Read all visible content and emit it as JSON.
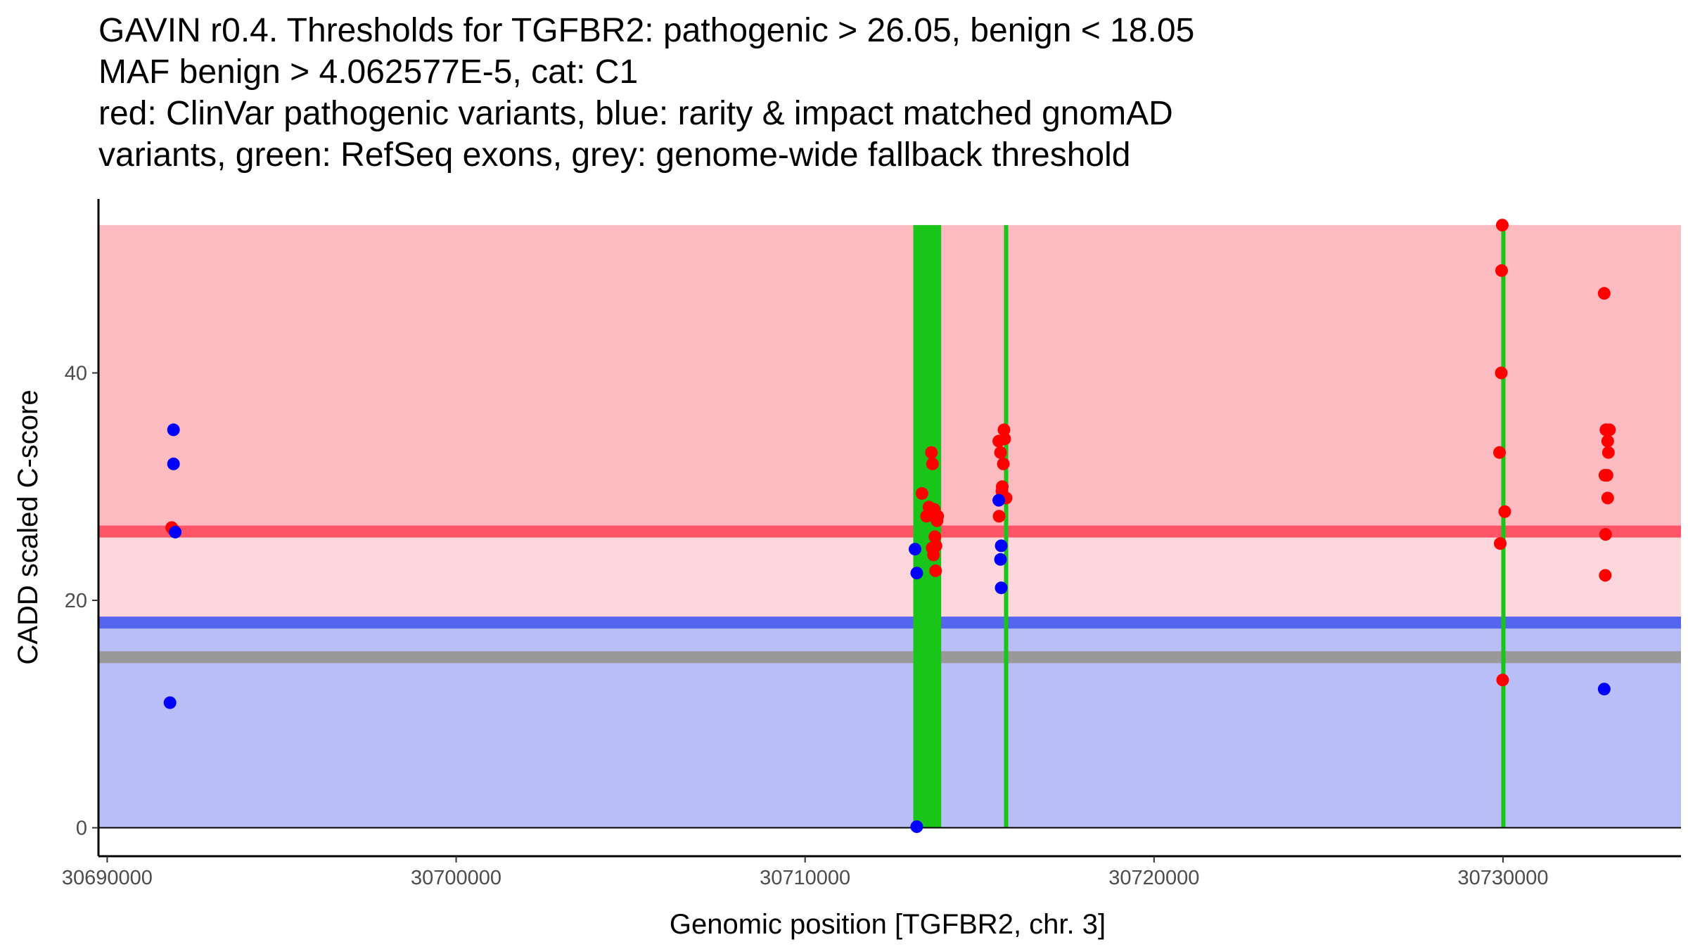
{
  "title_lines": [
    "GAVIN r0.4. Thresholds for TGFBR2: pathogenic > 26.05, benign < 18.05",
    "MAF benign > 4.062577E-5, cat: C1",
    "red: ClinVar pathogenic variants, blue: rarity & impact matched gnomAD",
    "variants, green: RefSeq exons, grey: genome-wide fallback threshold"
  ],
  "chart_data": {
    "type": "scatter",
    "xlabel": "Genomic position [TGFBR2, chr. 3]",
    "ylabel": "CADD scaled C-score",
    "xlim": [
      30689750,
      30735100
    ],
    "ylim": [
      -2.5,
      55.3
    ],
    "x_ticks": [
      30690000,
      30700000,
      30710000,
      30720000,
      30730000
    ],
    "x_tick_labels": [
      "30690000",
      "30700000",
      "30710000",
      "30720000",
      "30730000"
    ],
    "y_ticks": [
      0,
      20,
      40
    ],
    "y_tick_labels": [
      "0",
      "20",
      "40"
    ],
    "grid": false,
    "colors": {
      "pathogenic_band": "#fcbbc1",
      "mid_band_above": "#fdd7dc",
      "benign_band": "#babef8",
      "pathogenic_line": "#ff5566",
      "benign_line": "#5566ee",
      "fallback_line": "#999999",
      "exon": "#19c519",
      "clinvar_point": "#ff0000",
      "gnomad_point": "#0000ff"
    },
    "thresholds": {
      "pathogenic": 26.05,
      "benign": 18.05,
      "fallback": 15.0,
      "band_top": 53.0
    },
    "exons": [
      {
        "start": 30713100,
        "end": 30713900
      },
      {
        "start": 30715700,
        "end": 30715800
      },
      {
        "start": 30729950,
        "end": 30730050
      }
    ],
    "series": [
      {
        "name": "ClinVar pathogenic variants",
        "color": "red",
        "points": [
          [
            30691850,
            26.4
          ],
          [
            30691900,
            26.2
          ],
          [
            30713350,
            29.4
          ],
          [
            30713480,
            27.4
          ],
          [
            30713550,
            28.2
          ],
          [
            30713620,
            33.0
          ],
          [
            30713650,
            32.0
          ],
          [
            30713700,
            28.0
          ],
          [
            30713640,
            24.6
          ],
          [
            30713680,
            24.0
          ],
          [
            30713720,
            25.6
          ],
          [
            30713750,
            24.8
          ],
          [
            30713780,
            27.0
          ],
          [
            30713800,
            27.4
          ],
          [
            30713740,
            22.6
          ],
          [
            30715550,
            34.0
          ],
          [
            30715600,
            33.0
          ],
          [
            30715620,
            29.0
          ],
          [
            30715650,
            30.0
          ],
          [
            30715560,
            27.4
          ],
          [
            30715700,
            35.0
          ],
          [
            30715720,
            34.2
          ],
          [
            30715680,
            32.0
          ],
          [
            30715760,
            29.0
          ],
          [
            30715640,
            29.6
          ],
          [
            30729900,
            33.0
          ],
          [
            30729920,
            25.0
          ],
          [
            30729980,
            53.0
          ],
          [
            30729960,
            49.0
          ],
          [
            30729950,
            40.0
          ],
          [
            30730050,
            27.8
          ],
          [
            30729990,
            13.0
          ],
          [
            30732900,
            47.0
          ],
          [
            30732950,
            35.0
          ],
          [
            30733050,
            35.0
          ],
          [
            30733000,
            34.0
          ],
          [
            30733020,
            33.0
          ],
          [
            30732980,
            31.0
          ],
          [
            30732920,
            31.0
          ],
          [
            30733000,
            29.0
          ],
          [
            30732940,
            25.8
          ],
          [
            30732930,
            22.2
          ]
        ]
      },
      {
        "name": "rarity & impact matched gnomAD variants",
        "color": "blue",
        "points": [
          [
            30691900,
            35.0
          ],
          [
            30691900,
            32.0
          ],
          [
            30691950,
            26.0
          ],
          [
            30691800,
            11.0
          ],
          [
            30713150,
            24.5
          ],
          [
            30713200,
            22.4
          ],
          [
            30713200,
            0.1
          ],
          [
            30715550,
            28.8
          ],
          [
            30715620,
            24.8
          ],
          [
            30715600,
            23.6
          ],
          [
            30715620,
            21.1
          ],
          [
            30732900,
            12.2
          ]
        ]
      }
    ]
  }
}
